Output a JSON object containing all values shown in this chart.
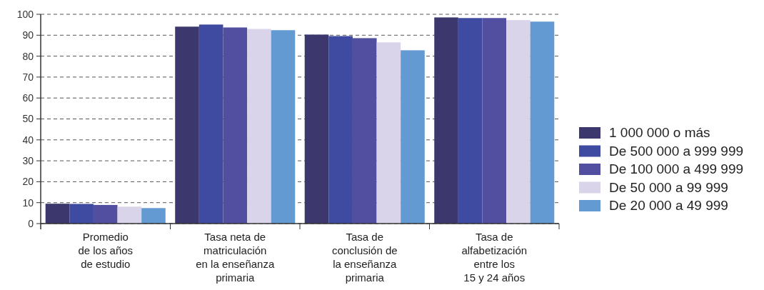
{
  "chart_data": {
    "type": "bar",
    "categories": [
      "Promedio\nde los años\nde estudio",
      "Tasa neta de\nmatriculación\nen la enseñanza\nprimaria",
      "Tasa de\nconclusión de\nla enseñanza\nprimaria",
      "Tasa de\nalfabetización\nentre los\n15 y 24 años"
    ],
    "series": [
      {
        "name": "1 000 000 o más",
        "color": "#3c386e",
        "values": [
          9.5,
          94.1,
          90.3,
          98.5
        ]
      },
      {
        "name": "De 500 000 a 999 999",
        "color": "#3f4ba0",
        "values": [
          9.4,
          95.1,
          89.6,
          98.2
        ]
      },
      {
        "name": "De 100 000 a 499 999",
        "color": "#524fa0",
        "values": [
          8.9,
          93.7,
          88.6,
          98.2
        ]
      },
      {
        "name": "De 50 000 a 99 999",
        "color": "#d9d4ea",
        "values": [
          8.1,
          93.0,
          86.6,
          97.2
        ]
      },
      {
        "name": "De 20 000 a 49 999",
        "color": "#639ad2",
        "values": [
          7.4,
          92.4,
          82.8,
          96.5
        ]
      }
    ],
    "ylim": [
      0,
      100
    ],
    "yticks": [
      0,
      10,
      20,
      30,
      40,
      50,
      60,
      70,
      80,
      90,
      100
    ],
    "grid": "y",
    "legend": "right"
  }
}
